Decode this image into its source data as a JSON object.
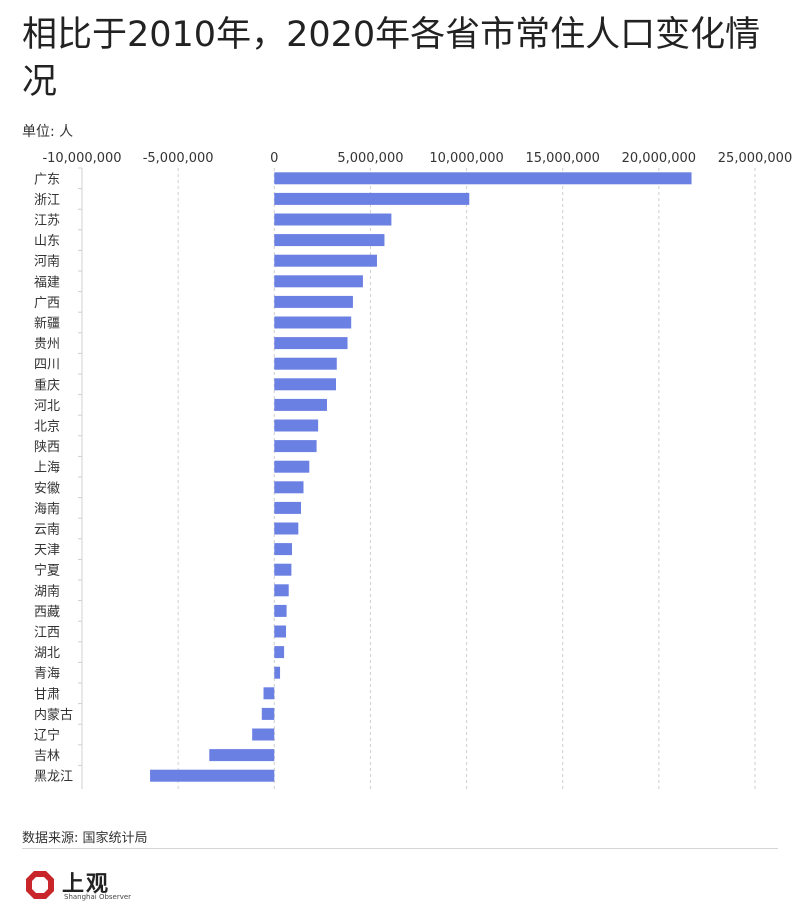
{
  "header": {
    "title": "相比于2010年，2020年各省市常住人口变化情况",
    "unit": "单位: 人"
  },
  "footer": {
    "source": "数据来源: 国家统计局",
    "logo_text": "上观",
    "logo_subtext": "Shanghai Observer"
  },
  "chart_data": {
    "type": "bar",
    "orientation": "horizontal",
    "title": "相比于2010年，2020年各省市常住人口变化情况",
    "unit_label": "单位: 人",
    "xlim": [
      -10000000,
      25000000
    ],
    "x_ticks": [
      -10000000,
      -5000000,
      0,
      5000000,
      10000000,
      15000000,
      20000000,
      25000000
    ],
    "x_tick_labels": [
      "-10,000,000",
      "-5,000,000",
      "0",
      "5,000,000",
      "10,000,000",
      "15,000,000",
      "20,000,000",
      "25,000,000"
    ],
    "x_axis_position": "top",
    "grid": "vertical dashed",
    "bar_color": "#6b80e3",
    "categories": [
      "广东",
      "浙江",
      "江苏",
      "山东",
      "河南",
      "福建",
      "广西",
      "新疆",
      "贵州",
      "四川",
      "重庆",
      "河北",
      "北京",
      "陕西",
      "上海",
      "安徽",
      "海南",
      "云南",
      "天津",
      "宁夏",
      "湖南",
      "西藏",
      "江西",
      "湖北",
      "青海",
      "甘肃",
      "内蒙古",
      "辽宁",
      "吉林",
      "黑龙江"
    ],
    "values": [
      21700000,
      10140000,
      6090000,
      5730000,
      5340000,
      4610000,
      4090000,
      4000000,
      3810000,
      3250000,
      3210000,
      2740000,
      2280000,
      2200000,
      1820000,
      1520000,
      1390000,
      1250000,
      920000,
      890000,
      750000,
      640000,
      610000,
      510000,
      300000,
      560000,
      650000,
      1150000,
      3380000,
      6460000
    ],
    "signs": [
      1,
      1,
      1,
      1,
      1,
      1,
      1,
      1,
      1,
      1,
      1,
      1,
      1,
      1,
      1,
      1,
      1,
      1,
      1,
      1,
      1,
      1,
      1,
      1,
      1,
      -1,
      -1,
      -1,
      -1,
      -1
    ],
    "source": "数据来源: 国家统计局"
  }
}
